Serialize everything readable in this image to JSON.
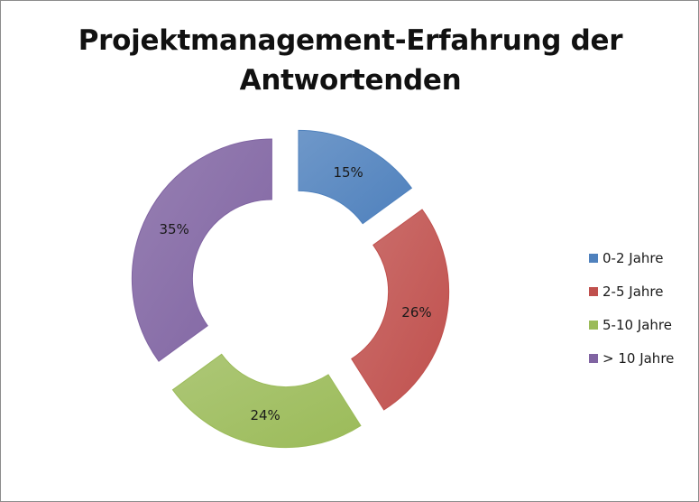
{
  "chart_data": {
    "type": "pie",
    "title": "Projektmanagement-Erfahrung der Antwortenden",
    "categories": [
      "0-2 Jahre",
      "2-5 Jahre",
      "5-10 Jahre",
      "> 10 Jahre"
    ],
    "values": [
      15,
      26,
      24,
      35
    ],
    "data_labels": [
      "15%",
      "26%",
      "24%",
      "35%"
    ],
    "colors": [
      "#4f81bd",
      "#c0504d",
      "#9bbb59",
      "#8064a2"
    ],
    "legend_position": "right",
    "style": "exploded doughnut"
  }
}
